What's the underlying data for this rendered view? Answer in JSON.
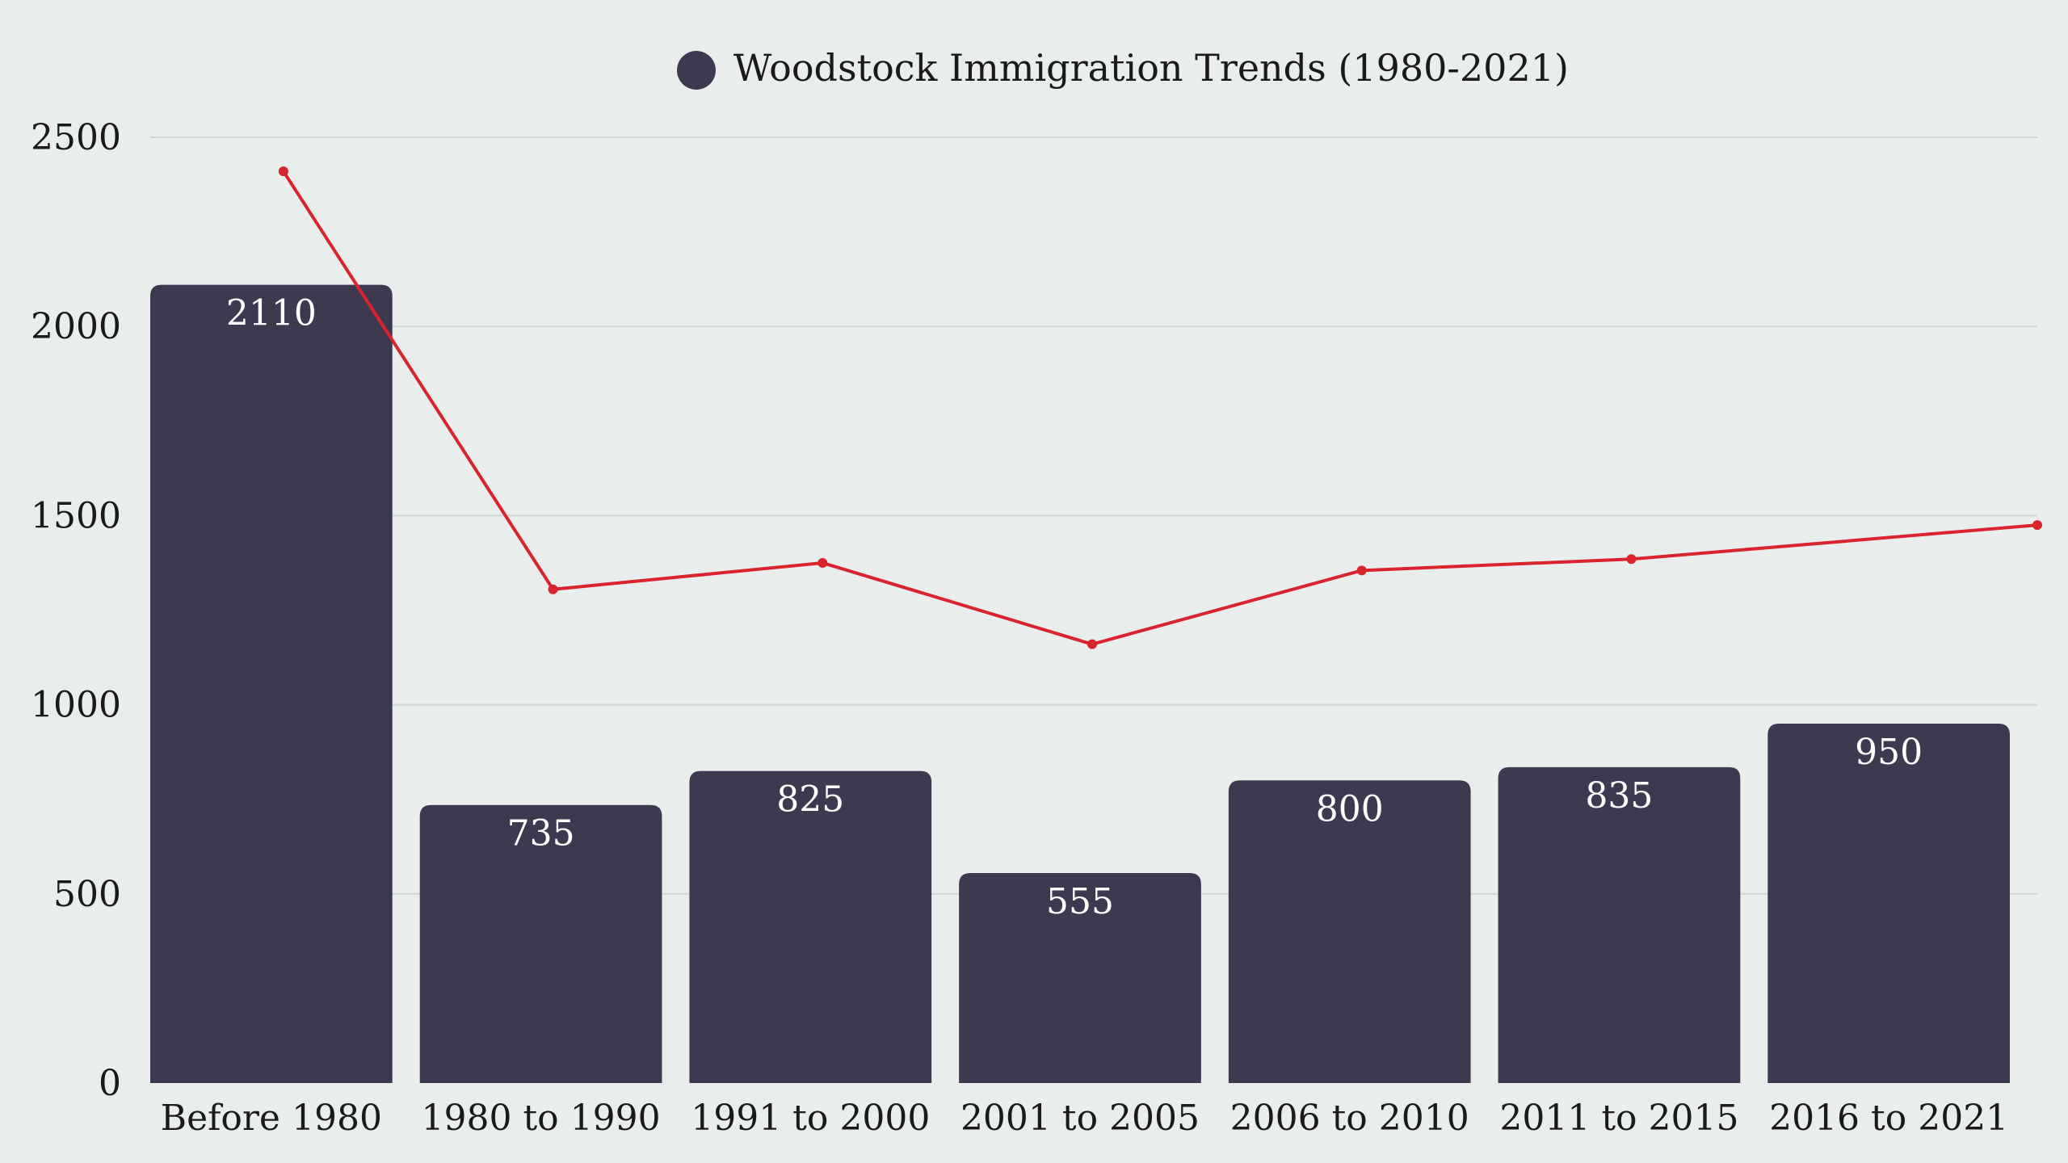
{
  "chart_data": {
    "type": "bar",
    "title": "",
    "xlabel": "",
    "ylabel": "",
    "ylim": [
      0,
      2500
    ],
    "yticks": [
      0,
      500,
      1000,
      1500,
      2000,
      2500
    ],
    "grid": true,
    "legend_position": "top-center",
    "categories": [
      "Before 1980",
      "1980 to 1990",
      "1991 to 2000",
      "2001 to 2005",
      "2006 to 2010",
      "2011 to 2015",
      "2016 to 2021"
    ],
    "series": [
      {
        "name": "Woodstock Immigration Trends (1980-2021)",
        "kind": "bar",
        "color": "#3d3950",
        "values": [
          2110,
          735,
          825,
          555,
          800,
          835,
          950
        ],
        "data_labels": [
          "2110",
          "735",
          "825",
          "555",
          "800",
          "835",
          "950"
        ]
      },
      {
        "kind": "line",
        "color": "#d9232d",
        "values": [
          2410,
          1305,
          1375,
          1160,
          1355,
          1385,
          1475
        ]
      }
    ]
  }
}
